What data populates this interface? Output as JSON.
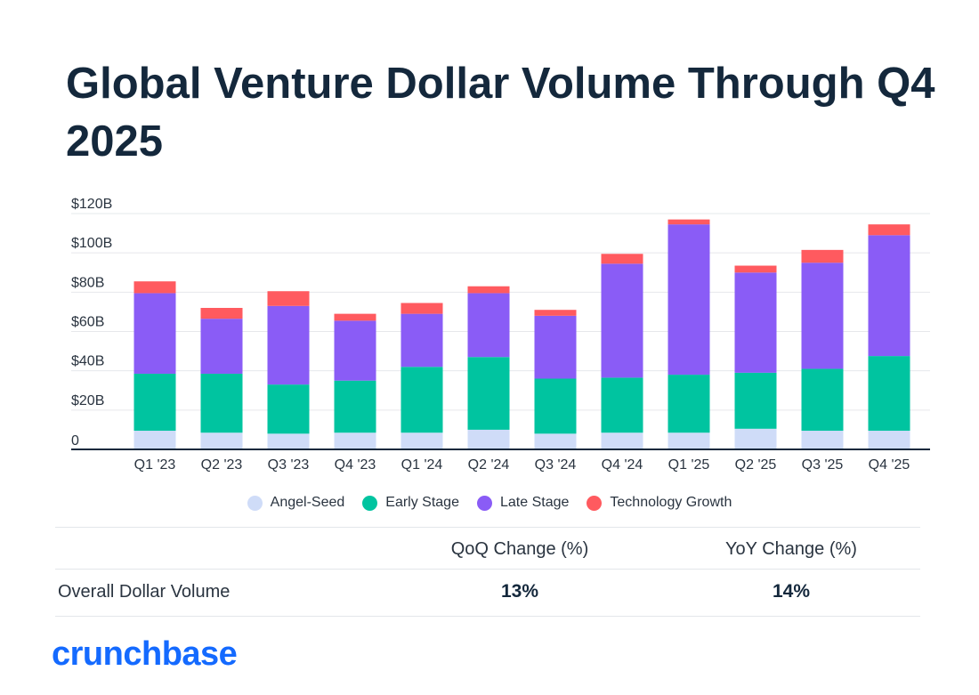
{
  "title": "Global Venture Dollar Volume Through Q4 2025",
  "chart_data": {
    "type": "bar",
    "stacked": true,
    "title": "Global Venture Dollar Volume Through Q4 2025",
    "xlabel": "",
    "ylabel": "",
    "categories": [
      "Q1 '23",
      "Q2 '23",
      "Q3 '23",
      "Q4 '23",
      "Q1 '24",
      "Q2 '24",
      "Q3 '24",
      "Q4 '24",
      "Q1 '25",
      "Q2 '25",
      "Q3 '25",
      "Q4 '25"
    ],
    "ylim": [
      0,
      120
    ],
    "yticks": [
      0,
      20,
      40,
      60,
      80,
      100,
      120
    ],
    "ytick_labels": [
      "0",
      "$20B",
      "$40B",
      "$60B",
      "$80B",
      "$100B",
      "$120B"
    ],
    "grid": true,
    "legend_position": "bottom",
    "series": [
      {
        "name": "Angel-Seed",
        "color": "#cfdcf8",
        "values": [
          9.5,
          8.5,
          8,
          8.5,
          8.5,
          10,
          8,
          8.5,
          8.5,
          10.5,
          9.5,
          9.5
        ]
      },
      {
        "name": "Early Stage",
        "color": "#00c4a0",
        "values": [
          29,
          30,
          25,
          26.5,
          33.5,
          37,
          28,
          28,
          29.5,
          28.5,
          31.5,
          38
        ]
      },
      {
        "name": "Late Stage",
        "color": "#8a5cf6",
        "values": [
          41,
          28,
          40,
          30.5,
          27,
          32.5,
          32,
          58,
          76.5,
          51,
          54,
          61.5
        ]
      },
      {
        "name": "Technology Growth",
        "color": "#ff5a5f",
        "values": [
          6,
          5.5,
          7.5,
          3.5,
          5.5,
          3.5,
          3,
          5,
          2.5,
          3.5,
          6.5,
          5.5
        ]
      }
    ]
  },
  "legend": {
    "items": [
      {
        "label": "Angel-Seed",
        "color": "#cfdcf8"
      },
      {
        "label": "Early Stage",
        "color": "#00c4a0"
      },
      {
        "label": "Late Stage",
        "color": "#8a5cf6"
      },
      {
        "label": "Technology Growth",
        "color": "#ff5a5f"
      }
    ]
  },
  "stats_table": {
    "headers": {
      "qoq": "QoQ Change (%)",
      "yoy": "YoY Change (%)"
    },
    "rows": [
      {
        "label": "Overall Dollar Volume",
        "qoq": "13%",
        "yoy": "14%"
      }
    ]
  },
  "brand": {
    "logo_text": "crunchbase",
    "color": "#146aff"
  }
}
